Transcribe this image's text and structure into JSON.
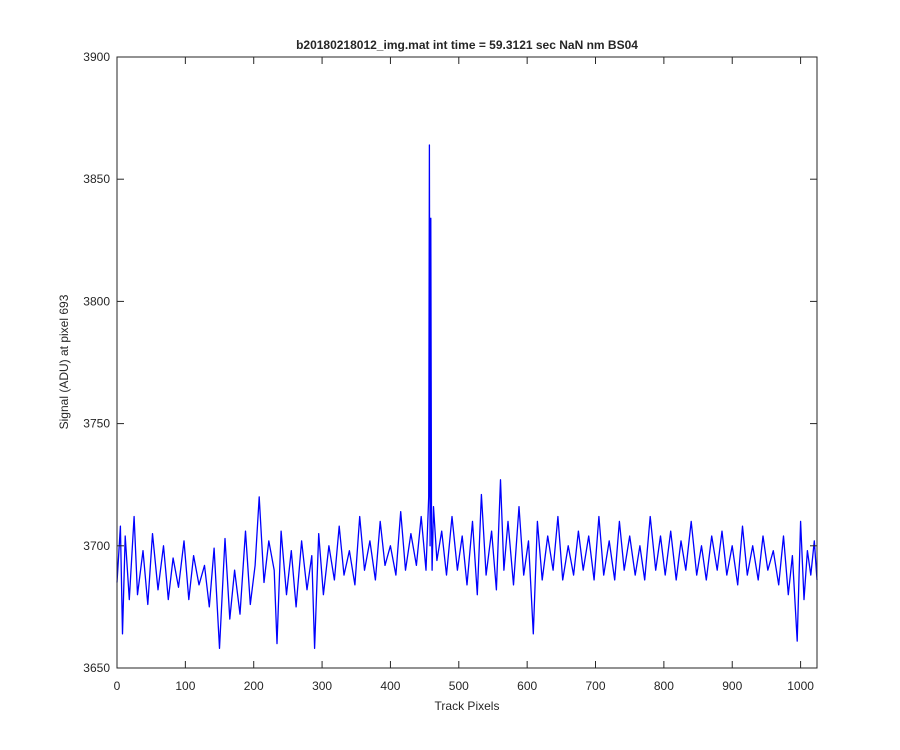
{
  "chart_data": {
    "type": "line",
    "title": "b20180218012_img.mat int time = 59.3121 sec  NaN nm BS04",
    "xlabel": "Track Pixels",
    "ylabel": "Signal (ADU) at pixel 693",
    "xlim": [
      0,
      1024
    ],
    "ylim": [
      3650,
      3900
    ],
    "xticks": [
      0,
      100,
      200,
      300,
      400,
      500,
      600,
      700,
      800,
      900,
      1000
    ],
    "yticks": [
      3650,
      3700,
      3750,
      3800,
      3850,
      3900
    ],
    "line_color": "#0000ff",
    "grid": false,
    "series": [
      {
        "x": [
          0,
          5,
          8,
          12,
          18,
          25,
          30,
          38,
          45,
          52,
          60,
          68,
          75,
          82,
          90,
          98,
          105,
          112,
          120,
          128,
          135,
          142,
          150,
          158,
          165,
          172,
          180,
          188,
          195,
          202,
          208,
          215,
          222,
          230,
          234,
          240,
          248,
          255,
          262,
          270,
          278,
          285,
          289,
          295,
          302,
          310,
          318,
          325,
          332,
          340,
          348,
          355,
          362,
          370,
          378,
          385,
          392,
          400,
          408,
          415,
          422,
          430,
          438,
          445,
          452,
          456,
          457,
          458,
          459,
          460,
          461,
          463,
          468,
          475,
          482,
          490,
          498,
          505,
          512,
          520,
          527,
          533,
          540,
          548,
          555,
          561,
          566,
          572,
          580,
          588,
          595,
          602,
          609,
          615,
          622,
          630,
          638,
          645,
          652,
          660,
          668,
          675,
          682,
          690,
          698,
          705,
          712,
          720,
          728,
          735,
          742,
          750,
          758,
          765,
          772,
          780,
          788,
          795,
          802,
          810,
          818,
          825,
          832,
          840,
          848,
          855,
          862,
          870,
          878,
          885,
          892,
          900,
          908,
          915,
          922,
          930,
          938,
          945,
          952,
          960,
          968,
          975,
          982,
          988,
          995,
          1000,
          1005,
          1010,
          1015,
          1020,
          1024
        ],
        "values": [
          3685,
          3708,
          3664,
          3704,
          3678,
          3712,
          3680,
          3698,
          3676,
          3705,
          3682,
          3700,
          3678,
          3695,
          3683,
          3702,
          3678,
          3696,
          3684,
          3692,
          3675,
          3699,
          3658,
          3703,
          3670,
          3690,
          3672,
          3706,
          3676,
          3692,
          3720,
          3685,
          3702,
          3690,
          3660,
          3706,
          3680,
          3698,
          3675,
          3702,
          3682,
          3696,
          3658,
          3705,
          3680,
          3700,
          3686,
          3708,
          3688,
          3698,
          3684,
          3712,
          3690,
          3702,
          3686,
          3710,
          3692,
          3700,
          3688,
          3714,
          3690,
          3705,
          3692,
          3712,
          3690,
          3720,
          3864,
          3700,
          3834,
          3710,
          3690,
          3716,
          3694,
          3706,
          3688,
          3712,
          3690,
          3704,
          3684,
          3710,
          3680,
          3721,
          3688,
          3706,
          3682,
          3727,
          3690,
          3710,
          3684,
          3716,
          3688,
          3702,
          3664,
          3710,
          3686,
          3704,
          3690,
          3712,
          3686,
          3700,
          3688,
          3706,
          3690,
          3704,
          3686,
          3712,
          3688,
          3702,
          3686,
          3710,
          3690,
          3704,
          3688,
          3700,
          3686,
          3712,
          3690,
          3704,
          3688,
          3706,
          3686,
          3702,
          3690,
          3710,
          3688,
          3700,
          3686,
          3704,
          3690,
          3706,
          3688,
          3700,
          3684,
          3708,
          3688,
          3700,
          3686,
          3704,
          3690,
          3698,
          3684,
          3704,
          3680,
          3696,
          3661,
          3710,
          3678,
          3698,
          3688,
          3702,
          3686
        ]
      }
    ]
  }
}
